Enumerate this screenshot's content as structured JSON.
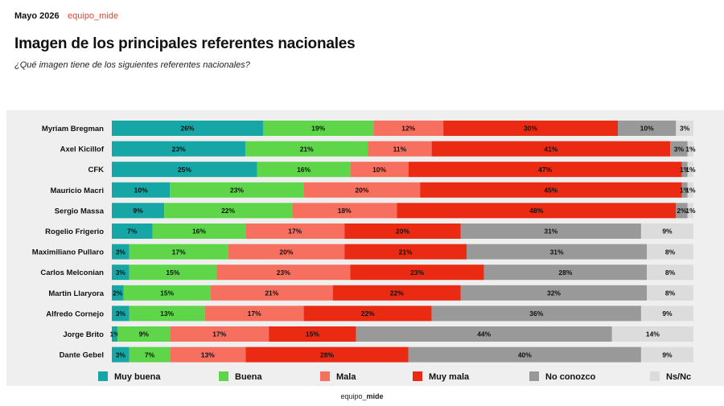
{
  "header": {
    "date": "Mayo 2026",
    "brand": "equipo_mide"
  },
  "title": "Imagen de los principales referentes nacionales",
  "subtitle": "¿Qué imagen tiene de los siguientes referentes nacionales?",
  "footer": {
    "prefix": "equipo_",
    "bold": "mide"
  },
  "chart_data": {
    "type": "bar",
    "orientation": "horizontal",
    "stacked": true,
    "value_suffix": "%",
    "legend_position": "bottom",
    "categories": [
      "Myriam Bregman",
      "Axel Kicillof",
      "CFK",
      "Mauricio Macri",
      "Sergio Massa",
      "Rogelio Frigerio",
      "Maximiliano Pullaro",
      "Carlos Melconian",
      "Martin Llaryora",
      "Alfredo Cornejo",
      "Jorge Brito",
      "Dante Gebel"
    ],
    "series": [
      {
        "name": "Muy buena",
        "color": "#17a6a6",
        "values": [
          26,
          23,
          25,
          10,
          9,
          7,
          3,
          3,
          2,
          3,
          1,
          3
        ]
      },
      {
        "name": "Buena",
        "color": "#5fd64a",
        "values": [
          19,
          21,
          16,
          23,
          22,
          16,
          17,
          15,
          15,
          13,
          9,
          7
        ]
      },
      {
        "name": "Mala",
        "color": "#f7705f",
        "values": [
          12,
          11,
          10,
          20,
          18,
          17,
          20,
          23,
          21,
          17,
          17,
          13
        ]
      },
      {
        "name": "Muy mala",
        "color": "#ea2a12",
        "values": [
          30,
          41,
          47,
          45,
          48,
          20,
          21,
          23,
          22,
          22,
          15,
          28
        ]
      },
      {
        "name": "No conozco",
        "color": "#999999",
        "values": [
          10,
          3,
          1,
          1,
          2,
          31,
          31,
          28,
          32,
          36,
          44,
          40
        ]
      },
      {
        "name": "Ns/Nc",
        "color": "#dcdcdc",
        "values": [
          3,
          1,
          1,
          1,
          1,
          9,
          8,
          8,
          8,
          9,
          14,
          9
        ]
      }
    ]
  }
}
